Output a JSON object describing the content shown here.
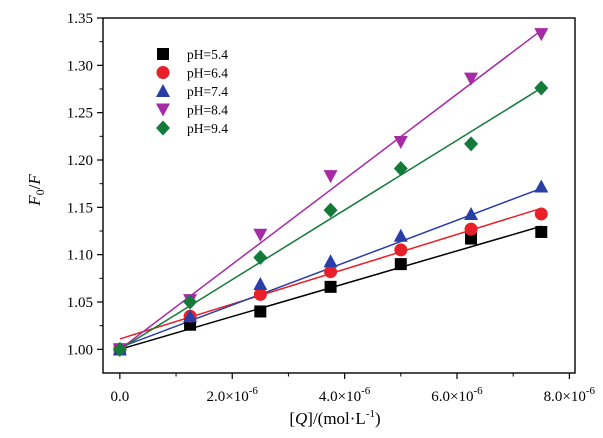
{
  "chart_data": {
    "type": "scatter",
    "x_axis": {
      "range": [
        -3e-07,
        8.1e-06
      ],
      "ticks": [
        0,
        2e-06,
        4e-06,
        6e-06,
        8e-06
      ],
      "tick_labels": [
        {
          "mantissa": "0.0",
          "exponent": ""
        },
        {
          "mantissa": "2.0×10",
          "exponent": "-6"
        },
        {
          "mantissa": "4.0×10",
          "exponent": "-6"
        },
        {
          "mantissa": "6.0×10",
          "exponent": "-6"
        },
        {
          "mantissa": "8.0×10",
          "exponent": "-6"
        }
      ],
      "label": {
        "open": "[",
        "symbol": "Q",
        "mid": "]/(mol·L",
        "exp": "-1",
        "close": ")"
      }
    },
    "y_axis": {
      "range": [
        0.975,
        1.35
      ],
      "ticks": [
        1.0,
        1.05,
        1.1,
        1.15,
        1.2,
        1.25,
        1.3,
        1.35
      ],
      "tick_labels": [
        "1.00",
        "1.05",
        "1.10",
        "1.15",
        "1.20",
        "1.25",
        "1.30",
        "1.35"
      ],
      "label": {
        "num": "F",
        "sub": "0",
        "slash": "/",
        "den": "F"
      }
    },
    "grid": false,
    "legend_position": "top-left",
    "x": [
      0,
      1.25e-06,
      2.5e-06,
      3.75e-06,
      5e-06,
      6.25e-06,
      7.5e-06
    ],
    "series": [
      {
        "name": "pH=5.4",
        "marker": "square",
        "color": "#000000",
        "values": [
          1.0,
          1.026,
          1.04,
          1.066,
          1.09,
          1.117,
          1.124
        ],
        "fit": [
          1.0,
          1.13
        ]
      },
      {
        "name": "pH=6.4",
        "marker": "circle",
        "color": "#e8202a",
        "values": [
          1.0,
          1.035,
          1.058,
          1.082,
          1.105,
          1.127,
          1.143
        ],
        "fit": [
          1.011,
          1.149
        ]
      },
      {
        "name": "pH=7.4",
        "marker": "triangle-up",
        "color": "#2a3ea8",
        "values": [
          1.0,
          1.035,
          1.069,
          1.093,
          1.12,
          1.143,
          1.172
        ],
        "fit": [
          1.002,
          1.17
        ]
      },
      {
        "name": "pH=8.4",
        "marker": "triangle-down",
        "color": "#a629a6",
        "values": [
          1.0,
          1.052,
          1.121,
          1.183,
          1.219,
          1.286,
          1.333
        ],
        "fit": [
          1.0,
          1.337
        ]
      },
      {
        "name": "pH=9.4",
        "marker": "diamond",
        "color": "#147a3a",
        "values": [
          1.0,
          1.05,
          1.097,
          1.147,
          1.191,
          1.217,
          1.276
        ],
        "fit": [
          1.0,
          1.276
        ]
      }
    ]
  }
}
